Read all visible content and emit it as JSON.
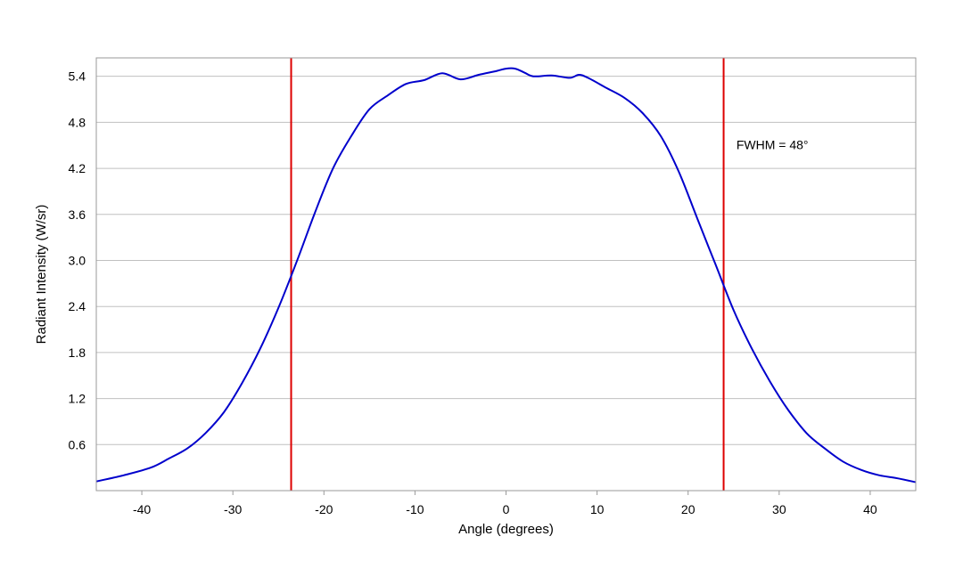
{
  "chart_data": {
    "type": "line",
    "title": "",
    "xlabel": "Angle (degrees)",
    "ylabel": "Radiant Intensity (W/sr)",
    "xlim": [
      -45,
      45
    ],
    "ylim": [
      0,
      5.64
    ],
    "xticks": [
      -40,
      -30,
      -20,
      -10,
      0,
      10,
      20,
      30,
      40
    ],
    "yticks": [
      0.6,
      1.2,
      1.8,
      2.4,
      3.0,
      3.6,
      4.2,
      4.8,
      5.4
    ],
    "ytick_labels": [
      "0.6",
      "1.2",
      "1.8",
      "2.4",
      "3.0",
      "3.6",
      "4.2",
      "4.8",
      "5.4"
    ],
    "grid": "horizontal",
    "series": [
      {
        "color": "#0000cc",
        "x": [
          -45,
          -42,
          -39,
          -37,
          -35,
          -33,
          -31,
          -29,
          -27,
          -25,
          -23,
          -21,
          -19,
          -17,
          -15,
          -13,
          -11,
          -9,
          -7,
          -5,
          -3,
          -1,
          0,
          1,
          2,
          3,
          5,
          7,
          8,
          9,
          11,
          13,
          15,
          17,
          19,
          21,
          23,
          25,
          27,
          29,
          31,
          33,
          35,
          37,
          39,
          41,
          43,
          45
        ],
        "y": [
          0.12,
          0.2,
          0.3,
          0.42,
          0.55,
          0.75,
          1.02,
          1.4,
          1.85,
          2.38,
          2.98,
          3.62,
          4.2,
          4.62,
          4.97,
          5.15,
          5.3,
          5.35,
          5.44,
          5.36,
          5.42,
          5.47,
          5.5,
          5.5,
          5.45,
          5.4,
          5.41,
          5.38,
          5.42,
          5.38,
          5.25,
          5.12,
          4.92,
          4.62,
          4.15,
          3.55,
          2.95,
          2.35,
          1.85,
          1.42,
          1.05,
          0.75,
          0.55,
          0.38,
          0.27,
          0.2,
          0.16,
          0.11
        ]
      }
    ],
    "vlines": [
      {
        "x": -23.6,
        "color": "#dd0000"
      },
      {
        "x": 23.9,
        "color": "#dd0000"
      }
    ],
    "annotation": {
      "text": "FWHM = 48°",
      "x": 25.3,
      "y": 4.45
    }
  }
}
